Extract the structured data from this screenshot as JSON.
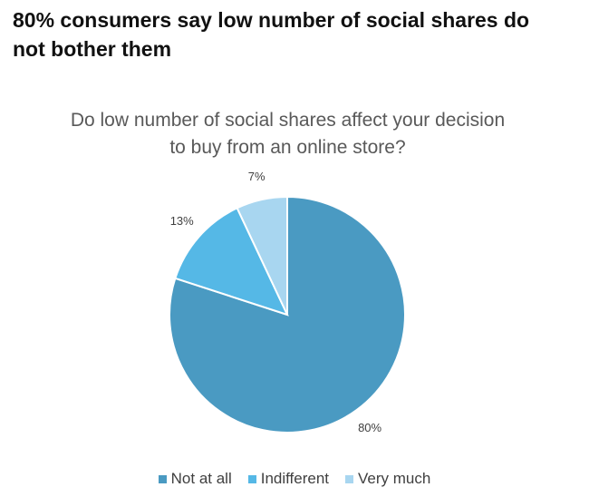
{
  "chart_data": {
    "type": "pie",
    "title": "80% consumers say low number of social shares do not bother them",
    "subtitle": "Do low number of social shares affect your decision to buy from an online store?",
    "categories": [
      "Not at all",
      "Indifferent",
      "Very much"
    ],
    "values": [
      80,
      13,
      7
    ],
    "value_labels": [
      "80%",
      "13%",
      "7%"
    ],
    "colors": [
      "#4a9ac2",
      "#55b8e6",
      "#a8d6f0"
    ],
    "legend": "bottom"
  }
}
